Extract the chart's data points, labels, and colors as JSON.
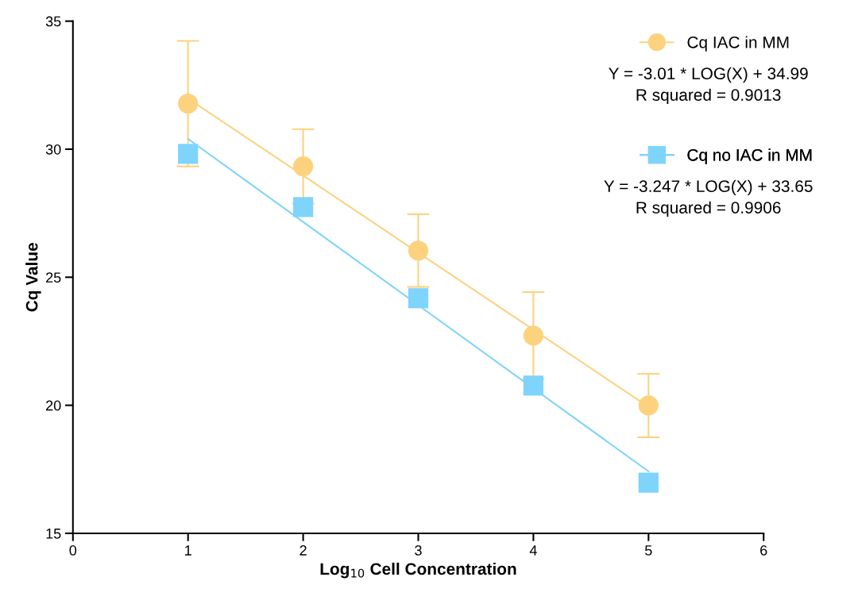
{
  "chart_data": {
    "type": "scatter",
    "xlabel": "Log$_{10}$ Cell Concentration",
    "ylabel": "Cq Value",
    "x": [
      1,
      2,
      3,
      4,
      5
    ],
    "xlim": [
      0,
      6
    ],
    "xticks": [
      0,
      1,
      2,
      3,
      4,
      5,
      6
    ],
    "ylim": [
      15,
      35
    ],
    "yticks": [
      15,
      20,
      25,
      30,
      35
    ],
    "grid": false,
    "legend": "top right",
    "series": [
      {
        "name": "Cq IAC in MM",
        "color": "#fdd27f",
        "marker": "circle",
        "values": [
          31.78,
          29.33,
          26.04,
          22.72,
          19.99
        ],
        "errors": [
          2.45,
          1.45,
          1.42,
          1.7,
          1.24
        ]
      },
      {
        "name": "Cq no IAC in MM",
        "color": "#7fd4fc",
        "marker": "square",
        "values": [
          29.82,
          27.74,
          24.18,
          20.77,
          16.98
        ]
      },
      {
        "type": "line",
        "color": "#fdd27f",
        "marker": "none",
        "values": [
          31.98,
          28.97,
          25.96,
          22.95,
          19.94
        ]
      },
      {
        "type": "line",
        "color": "#7fd4fc",
        "marker": "none",
        "values": [
          30.4,
          27.16,
          23.91,
          20.66,
          17.42
        ]
      }
    ],
    "annotations": [
      "Y = -3.01 * LOG(X) + 34.99\nR squared = 0.9013",
      "Y = -3.247 * LOG(X) + 33.65\nR squared = 0.9906"
    ]
  }
}
